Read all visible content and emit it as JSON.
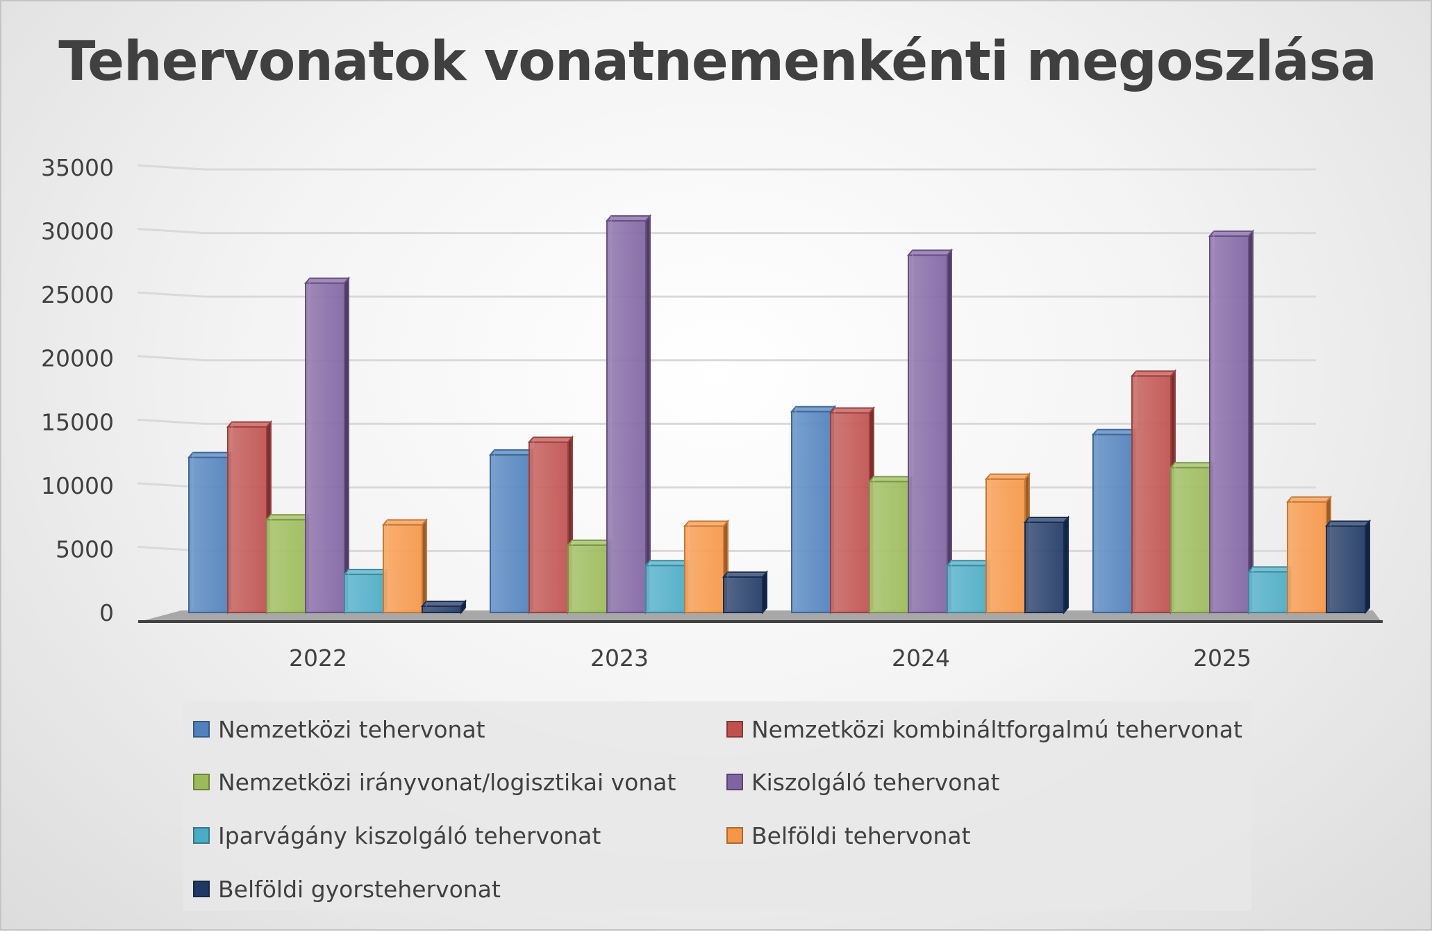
{
  "chart_data": {
    "type": "bar",
    "title": "Tehervonatok vonatnemenkénti megoszlása",
    "categories": [
      "2022",
      "2023",
      "2024",
      "2025"
    ],
    "ylim": [
      0,
      35000
    ],
    "yticks": [
      0,
      5000,
      10000,
      15000,
      20000,
      25000,
      30000,
      35000
    ],
    "grid": true,
    "legend_position": "bottom",
    "series": [
      {
        "name": "Nemzetközi tehervonat",
        "values": [
          12200,
          12400,
          15800,
          14000
        ],
        "color": "#4f81bd"
      },
      {
        "name": "Nemzetközi kombináltforgalmú tehervonat",
        "values": [
          14600,
          13400,
          15700,
          18600
        ],
        "color": "#c0504d"
      },
      {
        "name": "Nemzetközi irányvonat/logisztikai vonat",
        "values": [
          7300,
          5300,
          10300,
          11400
        ],
        "color": "#9bbb59"
      },
      {
        "name": "Kiszolgáló tehervonat",
        "values": [
          25900,
          30800,
          28100,
          29600
        ],
        "color": "#8064a2"
      },
      {
        "name": "Iparvágány kiszolgáló tehervonat",
        "values": [
          3000,
          3700,
          3700,
          3200
        ],
        "color": "#4bacc6"
      },
      {
        "name": "Belföldi tehervonat",
        "values": [
          6900,
          6800,
          10500,
          8700
        ],
        "color": "#f79646"
      },
      {
        "name": "Belföldi gyorstehervonat",
        "values": [
          500,
          2800,
          7100,
          6800
        ],
        "color": "#1f3864"
      }
    ]
  }
}
